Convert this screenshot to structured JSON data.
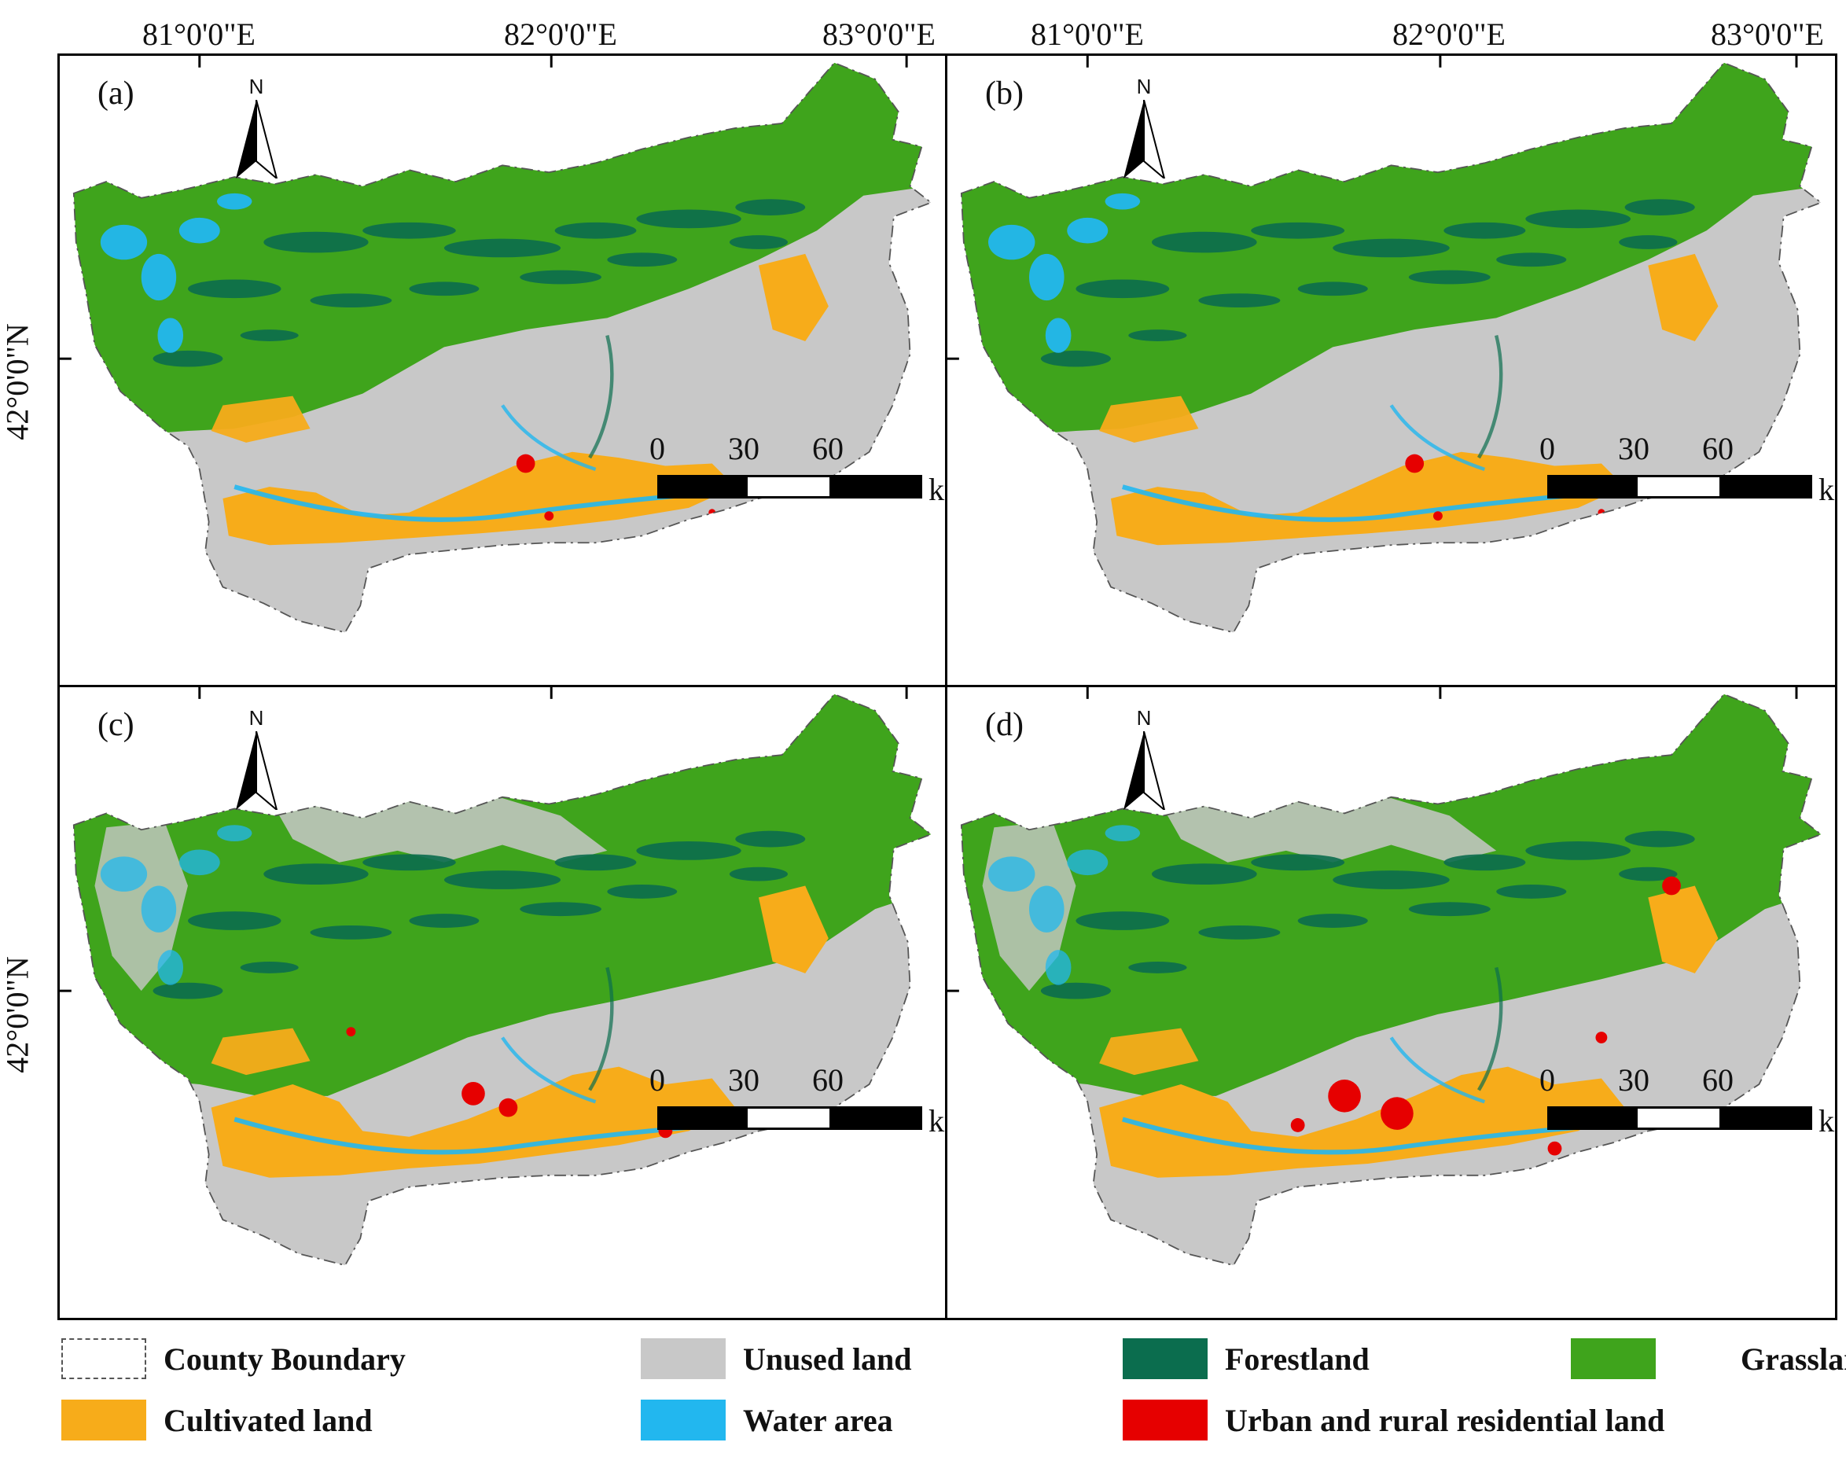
{
  "coordinates": {
    "longitudes": [
      "81°0'0\"E",
      "82°0'0\"E",
      "83°0'0\"E"
    ],
    "latitude": "42°0'0\"N"
  },
  "north_arrow": "N",
  "north_icon": "north-arrow-icon",
  "panels": [
    {
      "label": "(a)",
      "tone": "a"
    },
    {
      "label": "(b)",
      "tone": "b"
    },
    {
      "label": "(c)",
      "tone": "c"
    },
    {
      "label": "(d)",
      "tone": "d"
    }
  ],
  "scale_bar": {
    "ticks": [
      "0",
      "30",
      "60"
    ],
    "unit": "km"
  },
  "colors": {
    "unused": "#c8c8c8",
    "grassland": "#3fa41c",
    "forest": "#0b6d4e",
    "water": "#22b7ef",
    "cultivated": "#f7ac1a",
    "urban": "#e60000",
    "boundary": "#555555"
  },
  "legend": [
    {
      "label": "County Boundary",
      "key": "boundary"
    },
    {
      "label": "Unused land",
      "key": "unused"
    },
    {
      "label": "Forestland",
      "key": "forest"
    },
    {
      "label": "Grassland",
      "key": "grassland"
    },
    {
      "label": "Cultivated land",
      "key": "cultivated"
    },
    {
      "label": "Water area",
      "key": "water"
    },
    {
      "label": "Urban and rural residential land",
      "key": "urban"
    }
  ]
}
